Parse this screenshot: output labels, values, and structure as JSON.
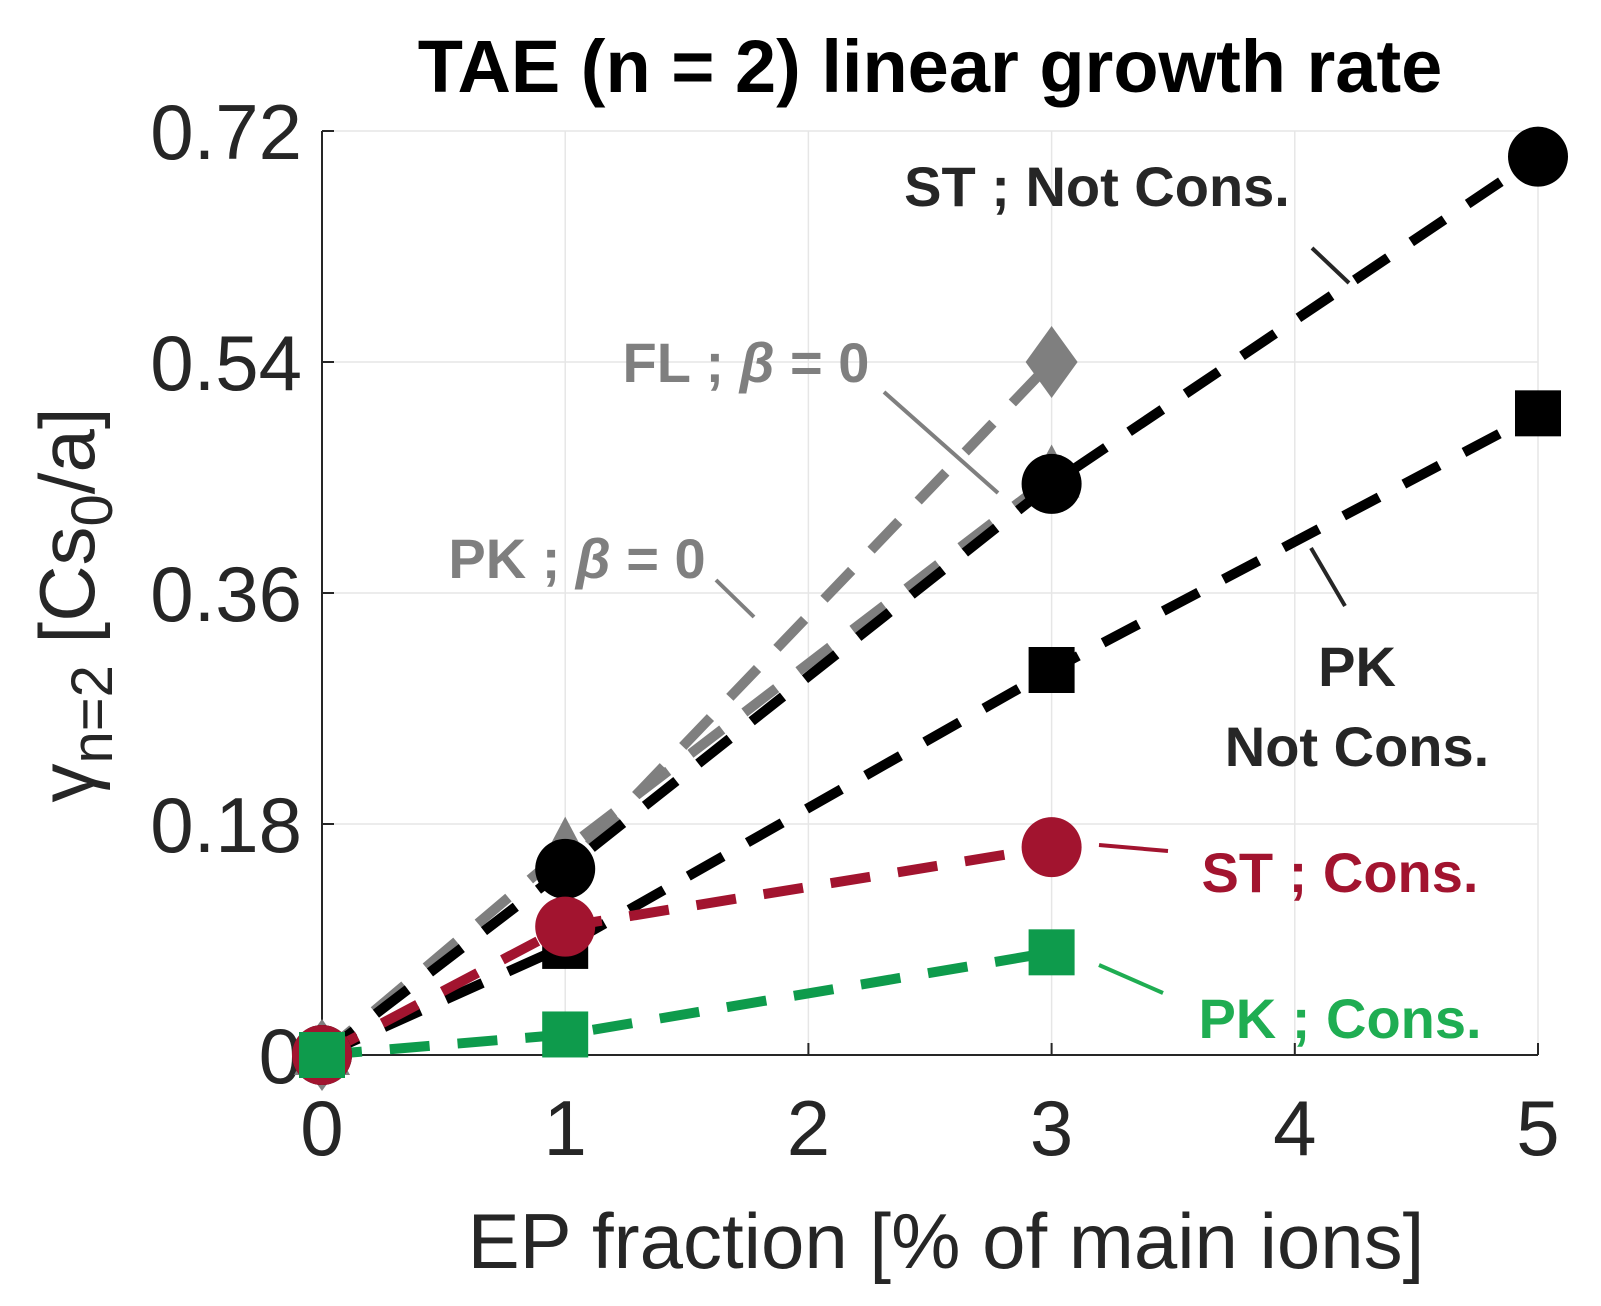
{
  "chart_data": {
    "type": "line",
    "title": "TAE (n = 2) linear growth rate",
    "xlabel": "EP fraction [% of main ions]",
    "ylabel": {
      "base": "γ",
      "sub": "n=2",
      "rest": " [Cs",
      "rest_sub": "0",
      "tail": "/a]"
    },
    "xlim": [
      0,
      5
    ],
    "ylim": [
      0,
      0.72
    ],
    "xticks": [
      "0",
      "1",
      "2",
      "3",
      "4",
      "5"
    ],
    "yticks": [
      "0",
      "0.18",
      "0.36",
      "0.54",
      "0.72"
    ],
    "ytick_values": [
      0,
      0.18,
      0.36,
      0.54,
      0.72
    ],
    "grid": true,
    "series": [
      {
        "name": "FL ; β = 0",
        "color": "#7f7f7f",
        "marker": "diamond",
        "x": [
          0,
          1,
          3
        ],
        "y": [
          0.0,
          0.145,
          0.54
        ]
      },
      {
        "name": "PK ; β = 0",
        "color": "#7f7f7f",
        "marker": "triangle",
        "x": [
          0,
          1,
          3
        ],
        "y": [
          0.0,
          0.16,
          0.45
        ]
      },
      {
        "name": "ST ; Not Cons.",
        "color": "#000000",
        "marker": "circle",
        "x": [
          0,
          1,
          3,
          5
        ],
        "y": [
          0.0,
          0.145,
          0.445,
          0.7
        ]
      },
      {
        "name": "PK Not Cons.",
        "color": "#000000",
        "marker": "square",
        "x": [
          0,
          1,
          3,
          5
        ],
        "y": [
          0.0,
          0.085,
          0.3,
          0.5
        ]
      },
      {
        "name": "ST ; Cons.",
        "color": "#a2142f",
        "marker": "circle",
        "x": [
          0,
          1,
          3
        ],
        "y": [
          0.0,
          0.1,
          0.162
        ]
      },
      {
        "name": "PK ; Cons.",
        "color": "#0e9b4c",
        "marker": "square",
        "x": [
          0,
          1,
          3
        ],
        "y": [
          0.0,
          0.016,
          0.08
        ]
      }
    ],
    "annotations": [
      {
        "text": "ST ; Not Cons.",
        "color": "#262626"
      },
      {
        "lines": [
          "FL ; ",
          "β",
          " = 0"
        ],
        "color": "#7f7f7f"
      },
      {
        "lines": [
          "PK ; ",
          "β",
          " = 0"
        ],
        "color": "#7f7f7f"
      },
      {
        "lines": [
          "PK",
          "Not Cons."
        ],
        "color": "#262626"
      },
      {
        "text": "ST ; Cons.",
        "color": "#a2142f"
      },
      {
        "text": "PK ; Cons.",
        "color": "#1fad52"
      }
    ]
  }
}
